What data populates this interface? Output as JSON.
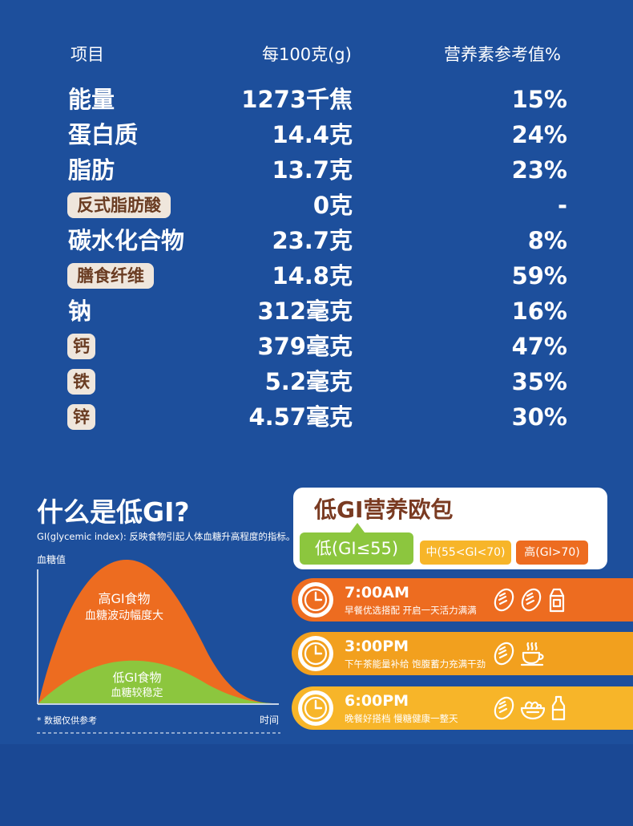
{
  "nutrition": {
    "headers": [
      "项目",
      "每100克(g)",
      "营养素参考值%"
    ],
    "rows": [
      {
        "name": "能量",
        "amount": "1273千焦",
        "nrv": "15%",
        "highlight": false
      },
      {
        "name": "蛋白质",
        "amount": "14.4克",
        "nrv": "24%",
        "highlight": false
      },
      {
        "name": "脂肪",
        "amount": "13.7克",
        "nrv": "23%",
        "highlight": false
      },
      {
        "name": "反式脂肪酸",
        "amount": "0克",
        "nrv": "-",
        "highlight": true
      },
      {
        "name": "碳水化合物",
        "amount": "23.7克",
        "nrv": "8%",
        "highlight": false
      },
      {
        "name": "膳食纤维",
        "amount": "14.8克",
        "nrv": "59%",
        "highlight": true
      },
      {
        "name": "钠",
        "amount": "312毫克",
        "nrv": "16%",
        "highlight": false
      },
      {
        "name": "钙",
        "amount": "379毫克",
        "nrv": "47%",
        "highlight": true
      },
      {
        "name": "铁",
        "amount": "5.2毫克",
        "nrv": "35%",
        "highlight": true
      },
      {
        "name": "锌",
        "amount": "4.57毫克",
        "nrv": "30%",
        "highlight": true
      }
    ]
  },
  "gi": {
    "title": "什么是低GI?",
    "definition": "GI(glycemic index): 反映食物引起人体血糖升高程度的指标。",
    "chart": {
      "ylabel": "血糖值",
      "xlabel": "时间",
      "footnote": "* 数据仅供参考",
      "high_label": "高GI食物",
      "high_sub": "血糖波动幅度大",
      "low_label": "低GI食物",
      "low_sub": "血糖较稳定",
      "colors": {
        "high": "#ed6c20",
        "low": "#8cc63e"
      }
    }
  },
  "card": {
    "title": "低GI营养欧包",
    "tag_low": "低(GI≤55)",
    "tag_mid": "中(55<GI<70)",
    "tag_high": "高(GI>70)"
  },
  "schedule": [
    {
      "time": "7:00AM",
      "desc": "早餐优选搭配 开启一天活力满满",
      "color": "#ed6c20",
      "icons": [
        "bread-icon",
        "bread-icon",
        "milk-carton-icon"
      ]
    },
    {
      "time": "3:00PM",
      "desc": "下午茶能量补给 饱腹蓄力充满干劲",
      "color": "#f2a01e",
      "icons": [
        "bread-icon",
        "coffee-cup-icon"
      ]
    },
    {
      "time": "6:00PM",
      "desc": "晚餐好搭档 慢糖健康一整天",
      "color": "#f7b529",
      "icons": [
        "bread-icon",
        "salad-bowl-icon",
        "milk-bottle-icon"
      ]
    }
  ]
}
